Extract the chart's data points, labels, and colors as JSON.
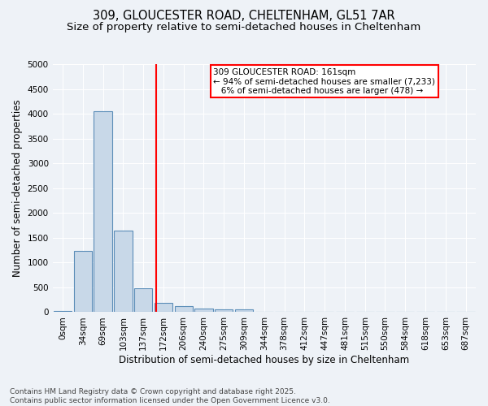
{
  "title_line1": "309, GLOUCESTER ROAD, CHELTENHAM, GL51 7AR",
  "title_line2": "Size of property relative to semi-detached houses in Cheltenham",
  "xlabel": "Distribution of semi-detached houses by size in Cheltenham",
  "ylabel": "Number of semi-detached properties",
  "bar_labels": [
    "0sqm",
    "34sqm",
    "69sqm",
    "103sqm",
    "137sqm",
    "172sqm",
    "206sqm",
    "240sqm",
    "275sqm",
    "309sqm",
    "344sqm",
    "378sqm",
    "412sqm",
    "447sqm",
    "481sqm",
    "515sqm",
    "550sqm",
    "584sqm",
    "618sqm",
    "653sqm",
    "687sqm"
  ],
  "bar_values": [
    30,
    1230,
    4050,
    1640,
    480,
    195,
    115,
    70,
    55,
    55,
    0,
    0,
    0,
    0,
    0,
    0,
    0,
    0,
    0,
    0,
    0
  ],
  "bar_color": "#c8d8e8",
  "bar_edge_color": "#5b8db8",
  "vline_x": 4.65,
  "vline_color": "red",
  "annotation_text": "309 GLOUCESTER ROAD: 161sqm\n← 94% of semi-detached houses are smaller (7,233)\n   6% of semi-detached houses are larger (478) →",
  "annotation_box_color": "white",
  "annotation_box_edge": "red",
  "ylim": [
    0,
    5000
  ],
  "yticks": [
    0,
    500,
    1000,
    1500,
    2000,
    2500,
    3000,
    3500,
    4000,
    4500,
    5000
  ],
  "background_color": "#eef2f7",
  "grid_color": "#ffffff",
  "footer_text": "Contains HM Land Registry data © Crown copyright and database right 2025.\nContains public sector information licensed under the Open Government Licence v3.0.",
  "title_fontsize": 10.5,
  "subtitle_fontsize": 9.5,
  "axis_label_fontsize": 8.5,
  "tick_fontsize": 7.5,
  "footer_fontsize": 6.5,
  "annot_fontsize": 7.5
}
